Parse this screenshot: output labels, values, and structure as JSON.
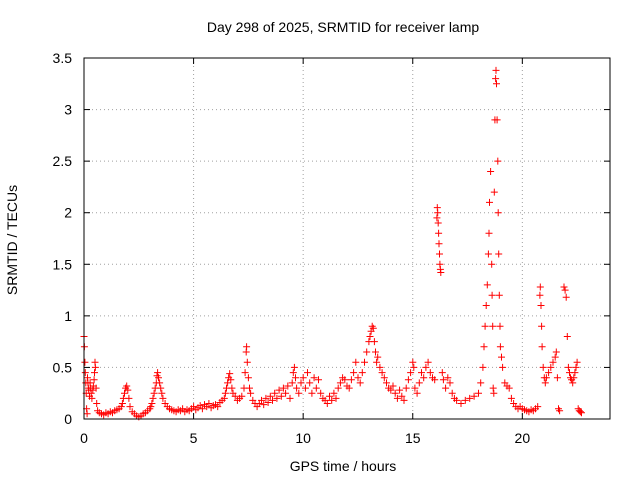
{
  "chart_data": {
    "type": "scatter",
    "title": "Day 298 of 2025, SRMTID for receiver lamp",
    "xlabel": "GPS time / hours",
    "ylabel": "SRMTID / TECUs",
    "xlim": [
      0,
      24
    ],
    "ylim": [
      0,
      3.5
    ],
    "x_ticks": [
      0,
      5,
      10,
      15,
      20
    ],
    "y_ticks": [
      0,
      0.5,
      1,
      1.5,
      2,
      2.5,
      3,
      3.5
    ],
    "x_tick_labels": [
      "0",
      "5",
      "10",
      "15",
      "20"
    ],
    "y_tick_labels": [
      "0",
      "0.5",
      "1",
      "1.5",
      "2",
      "2.5",
      "3",
      "3.5"
    ],
    "grid": true,
    "marker": "+",
    "series": [
      {
        "name": "SRMTID",
        "color": "#ff0000",
        "points": [
          [
            0.0,
            0.8
          ],
          [
            0.02,
            0.7
          ],
          [
            0.04,
            0.55
          ],
          [
            0.06,
            0.45
          ],
          [
            0.08,
            0.35
          ],
          [
            0.1,
            0.25
          ],
          [
            0.12,
            0.1
          ],
          [
            0.14,
            0.05
          ],
          [
            0.16,
            0.4
          ],
          [
            0.18,
            0.35
          ],
          [
            0.2,
            0.3
          ],
          [
            0.22,
            0.28
          ],
          [
            0.25,
            0.22
          ],
          [
            0.28,
            0.35
          ],
          [
            0.3,
            0.3
          ],
          [
            0.33,
            0.25
          ],
          [
            0.36,
            0.2
          ],
          [
            0.4,
            0.28
          ],
          [
            0.43,
            0.32
          ],
          [
            0.46,
            0.38
          ],
          [
            0.48,
            0.45
          ],
          [
            0.5,
            0.55
          ],
          [
            0.52,
            0.5
          ],
          [
            0.55,
            0.3
          ],
          [
            0.58,
            0.15
          ],
          [
            0.62,
            0.08
          ],
          [
            0.7,
            0.06
          ],
          [
            0.8,
            0.05
          ],
          [
            0.9,
            0.04
          ],
          [
            1.0,
            0.06
          ],
          [
            1.1,
            0.05
          ],
          [
            1.2,
            0.07
          ],
          [
            1.3,
            0.06
          ],
          [
            1.4,
            0.08
          ],
          [
            1.5,
            0.09
          ],
          [
            1.6,
            0.1
          ],
          [
            1.7,
            0.12
          ],
          [
            1.75,
            0.15
          ],
          [
            1.8,
            0.2
          ],
          [
            1.85,
            0.25
          ],
          [
            1.9,
            0.3
          ],
          [
            1.95,
            0.32
          ],
          [
            2.0,
            0.28
          ],
          [
            2.05,
            0.2
          ],
          [
            2.1,
            0.12
          ],
          [
            2.2,
            0.07
          ],
          [
            2.3,
            0.05
          ],
          [
            2.4,
            0.03
          ],
          [
            2.5,
            0.02
          ],
          [
            2.6,
            0.03
          ],
          [
            2.7,
            0.05
          ],
          [
            2.8,
            0.06
          ],
          [
            2.9,
            0.08
          ],
          [
            3.0,
            0.1
          ],
          [
            3.05,
            0.12
          ],
          [
            3.1,
            0.15
          ],
          [
            3.15,
            0.2
          ],
          [
            3.2,
            0.25
          ],
          [
            3.25,
            0.3
          ],
          [
            3.3,
            0.35
          ],
          [
            3.33,
            0.42
          ],
          [
            3.36,
            0.45
          ],
          [
            3.4,
            0.4
          ],
          [
            3.45,
            0.35
          ],
          [
            3.5,
            0.3
          ],
          [
            3.55,
            0.25
          ],
          [
            3.6,
            0.2
          ],
          [
            3.7,
            0.15
          ],
          [
            3.8,
            0.12
          ],
          [
            3.9,
            0.1
          ],
          [
            4.0,
            0.09
          ],
          [
            4.1,
            0.08
          ],
          [
            4.2,
            0.07
          ],
          [
            4.3,
            0.09
          ],
          [
            4.4,
            0.08
          ],
          [
            4.5,
            0.1
          ],
          [
            4.6,
            0.07
          ],
          [
            4.7,
            0.09
          ],
          [
            4.8,
            0.08
          ],
          [
            4.9,
            0.1
          ],
          [
            5.0,
            0.12
          ],
          [
            5.1,
            0.09
          ],
          [
            5.2,
            0.11
          ],
          [
            5.3,
            0.13
          ],
          [
            5.4,
            0.1
          ],
          [
            5.5,
            0.14
          ],
          [
            5.6,
            0.12
          ],
          [
            5.7,
            0.15
          ],
          [
            5.8,
            0.11
          ],
          [
            5.9,
            0.13
          ],
          [
            6.0,
            0.14
          ],
          [
            6.1,
            0.12
          ],
          [
            6.2,
            0.16
          ],
          [
            6.3,
            0.18
          ],
          [
            6.4,
            0.2
          ],
          [
            6.45,
            0.25
          ],
          [
            6.5,
            0.3
          ],
          [
            6.55,
            0.35
          ],
          [
            6.6,
            0.4
          ],
          [
            6.65,
            0.44
          ],
          [
            6.7,
            0.38
          ],
          [
            6.75,
            0.3
          ],
          [
            6.8,
            0.25
          ],
          [
            6.9,
            0.22
          ],
          [
            7.0,
            0.18
          ],
          [
            7.1,
            0.2
          ],
          [
            7.2,
            0.22
          ],
          [
            7.3,
            0.3
          ],
          [
            7.35,
            0.45
          ],
          [
            7.4,
            0.65
          ],
          [
            7.42,
            0.7
          ],
          [
            7.45,
            0.55
          ],
          [
            7.5,
            0.4
          ],
          [
            7.55,
            0.3
          ],
          [
            7.6,
            0.25
          ],
          [
            7.7,
            0.18
          ],
          [
            7.8,
            0.15
          ],
          [
            7.9,
            0.12
          ],
          [
            8.0,
            0.15
          ],
          [
            8.1,
            0.18
          ],
          [
            8.2,
            0.14
          ],
          [
            8.3,
            0.2
          ],
          [
            8.4,
            0.16
          ],
          [
            8.5,
            0.22
          ],
          [
            8.6,
            0.18
          ],
          [
            8.7,
            0.25
          ],
          [
            8.8,
            0.2
          ],
          [
            8.9,
            0.28
          ],
          [
            9.0,
            0.22
          ],
          [
            9.1,
            0.3
          ],
          [
            9.2,
            0.25
          ],
          [
            9.3,
            0.32
          ],
          [
            9.4,
            0.2
          ],
          [
            9.5,
            0.35
          ],
          [
            9.55,
            0.45
          ],
          [
            9.6,
            0.5
          ],
          [
            9.65,
            0.4
          ],
          [
            9.7,
            0.3
          ],
          [
            9.8,
            0.25
          ],
          [
            9.9,
            0.35
          ],
          [
            10.0,
            0.4
          ],
          [
            10.1,
            0.3
          ],
          [
            10.2,
            0.45
          ],
          [
            10.3,
            0.35
          ],
          [
            10.4,
            0.25
          ],
          [
            10.5,
            0.4
          ],
          [
            10.6,
            0.3
          ],
          [
            10.7,
            0.38
          ],
          [
            10.8,
            0.25
          ],
          [
            10.9,
            0.2
          ],
          [
            11.0,
            0.18
          ],
          [
            11.1,
            0.15
          ],
          [
            11.2,
            0.22
          ],
          [
            11.3,
            0.18
          ],
          [
            11.4,
            0.25
          ],
          [
            11.5,
            0.2
          ],
          [
            11.6,
            0.3
          ],
          [
            11.7,
            0.35
          ],
          [
            11.8,
            0.4
          ],
          [
            11.9,
            0.38
          ],
          [
            12.0,
            0.32
          ],
          [
            12.1,
            0.3
          ],
          [
            12.2,
            0.38
          ],
          [
            12.3,
            0.45
          ],
          [
            12.4,
            0.55
          ],
          [
            12.5,
            0.4
          ],
          [
            12.6,
            0.35
          ],
          [
            12.7,
            0.45
          ],
          [
            12.8,
            0.55
          ],
          [
            12.9,
            0.65
          ],
          [
            13.0,
            0.75
          ],
          [
            13.05,
            0.8
          ],
          [
            13.1,
            0.85
          ],
          [
            13.15,
            0.9
          ],
          [
            13.2,
            0.88
          ],
          [
            13.25,
            0.75
          ],
          [
            13.3,
            0.65
          ],
          [
            13.35,
            0.55
          ],
          [
            13.4,
            0.6
          ],
          [
            13.5,
            0.5
          ],
          [
            13.6,
            0.45
          ],
          [
            13.7,
            0.4
          ],
          [
            13.8,
            0.35
          ],
          [
            13.9,
            0.3
          ],
          [
            14.0,
            0.28
          ],
          [
            14.1,
            0.32
          ],
          [
            14.2,
            0.25
          ],
          [
            14.3,
            0.2
          ],
          [
            14.4,
            0.28
          ],
          [
            14.5,
            0.22
          ],
          [
            14.6,
            0.18
          ],
          [
            14.7,
            0.3
          ],
          [
            14.8,
            0.38
          ],
          [
            14.9,
            0.45
          ],
          [
            15.0,
            0.55
          ],
          [
            15.05,
            0.5
          ],
          [
            15.1,
            0.3
          ],
          [
            15.2,
            0.25
          ],
          [
            15.3,
            0.35
          ],
          [
            15.4,
            0.45
          ],
          [
            15.5,
            0.4
          ],
          [
            15.6,
            0.5
          ],
          [
            15.7,
            0.55
          ],
          [
            15.8,
            0.45
          ],
          [
            15.9,
            0.4
          ],
          [
            16.0,
            0.38
          ],
          [
            16.1,
            1.95
          ],
          [
            16.12,
            2.05
          ],
          [
            16.14,
            2.0
          ],
          [
            16.16,
            1.9
          ],
          [
            16.18,
            1.8
          ],
          [
            16.2,
            1.7
          ],
          [
            16.22,
            1.6
          ],
          [
            16.24,
            1.5
          ],
          [
            16.26,
            1.45
          ],
          [
            16.28,
            1.42
          ],
          [
            16.35,
            0.45
          ],
          [
            16.4,
            0.38
          ],
          [
            16.5,
            0.3
          ],
          [
            16.6,
            0.4
          ],
          [
            16.7,
            0.35
          ],
          [
            16.8,
            0.25
          ],
          [
            16.9,
            0.2
          ],
          [
            17.0,
            0.18
          ],
          [
            17.2,
            0.15
          ],
          [
            17.4,
            0.18
          ],
          [
            17.6,
            0.2
          ],
          [
            17.8,
            0.22
          ],
          [
            18.0,
            0.25
          ],
          [
            18.1,
            0.35
          ],
          [
            18.2,
            0.5
          ],
          [
            18.25,
            0.7
          ],
          [
            18.3,
            0.9
          ],
          [
            18.35,
            1.1
          ],
          [
            18.4,
            1.3
          ],
          [
            18.45,
            1.6
          ],
          [
            18.48,
            1.8
          ],
          [
            18.5,
            2.1
          ],
          [
            18.55,
            2.4
          ],
          [
            18.6,
            1.5
          ],
          [
            18.62,
            1.2
          ],
          [
            18.65,
            0.9
          ],
          [
            18.67,
            0.3
          ],
          [
            18.7,
            0.25
          ],
          [
            18.72,
            2.2
          ],
          [
            18.75,
            2.9
          ],
          [
            18.78,
            3.3
          ],
          [
            18.8,
            3.38
          ],
          [
            18.82,
            3.25
          ],
          [
            18.85,
            2.9
          ],
          [
            18.88,
            2.5
          ],
          [
            18.9,
            2.0
          ],
          [
            18.92,
            1.6
          ],
          [
            18.95,
            1.2
          ],
          [
            18.98,
            0.9
          ],
          [
            19.0,
            0.7
          ],
          [
            19.05,
            0.6
          ],
          [
            19.1,
            0.5
          ],
          [
            19.2,
            0.35
          ],
          [
            19.3,
            0.32
          ],
          [
            19.4,
            0.3
          ],
          [
            19.5,
            0.2
          ],
          [
            19.6,
            0.15
          ],
          [
            19.7,
            0.12
          ],
          [
            19.8,
            0.1
          ],
          [
            19.9,
            0.12
          ],
          [
            20.0,
            0.1
          ],
          [
            20.1,
            0.09
          ],
          [
            20.2,
            0.08
          ],
          [
            20.3,
            0.07
          ],
          [
            20.4,
            0.09
          ],
          [
            20.5,
            0.08
          ],
          [
            20.6,
            0.1
          ],
          [
            20.7,
            0.12
          ],
          [
            20.8,
            1.2
          ],
          [
            20.82,
            1.28
          ],
          [
            20.85,
            1.1
          ],
          [
            20.88,
            0.9
          ],
          [
            20.9,
            0.7
          ],
          [
            20.95,
            0.5
          ],
          [
            21.0,
            0.4
          ],
          [
            21.05,
            0.35
          ],
          [
            21.1,
            0.4
          ],
          [
            21.2,
            0.45
          ],
          [
            21.3,
            0.5
          ],
          [
            21.4,
            0.55
          ],
          [
            21.5,
            0.6
          ],
          [
            21.55,
            0.65
          ],
          [
            21.6,
            0.4
          ],
          [
            21.65,
            0.1
          ],
          [
            21.7,
            0.08
          ],
          [
            21.9,
            1.28
          ],
          [
            21.95,
            1.25
          ],
          [
            22.0,
            1.18
          ],
          [
            22.05,
            0.8
          ],
          [
            22.1,
            0.5
          ],
          [
            22.15,
            0.45
          ],
          [
            22.2,
            0.4
          ],
          [
            22.25,
            0.38
          ],
          [
            22.3,
            0.35
          ],
          [
            22.35,
            0.4
          ],
          [
            22.4,
            0.45
          ],
          [
            22.45,
            0.5
          ],
          [
            22.5,
            0.55
          ],
          [
            22.55,
            0.1
          ],
          [
            22.6,
            0.08
          ],
          [
            22.65,
            0.07
          ],
          [
            22.7,
            0.06
          ]
        ]
      }
    ]
  }
}
